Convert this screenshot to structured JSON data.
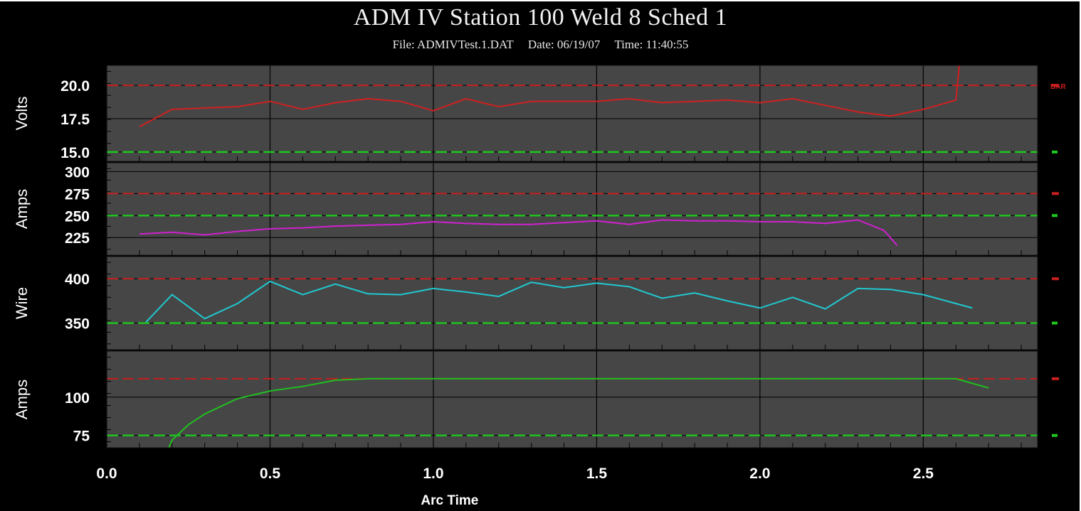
{
  "window": {
    "title": "ADM IV Station 100 Weld 8 Sched 1",
    "file_text": "File: ADMIVTest.1.DAT",
    "date_text": "Date: 06/19/07",
    "time_text": "Time: 11:40:55"
  },
  "colors": {
    "background": "#000000",
    "plot_bg": "#464646",
    "grid": "#000000",
    "upper_limit": "#c81e1e",
    "lower_limit": "#1ec81e",
    "volts_line": "#d02020",
    "amps_line": "#d020d0",
    "wire_line": "#20c8d0",
    "amps2_line": "#20c020"
  },
  "chart_data": {
    "type": "line",
    "xlabel": "Arc Time",
    "xlim": [
      0.0,
      2.85
    ],
    "xticks": [
      "0.0",
      "0.5",
      "1.0",
      "1.5",
      "2.0",
      "2.5"
    ],
    "panels": [
      {
        "ylabel": "Volts",
        "ylim": [
          14.3,
          21.5
        ],
        "yticks": [
          "20.0",
          "17.5",
          "15.0"
        ],
        "yticks_values": [
          20.0,
          17.5,
          15.0
        ],
        "upper_limit": 20.0,
        "lower_limit": 15.0,
        "upper_marker": "BAR",
        "lower_marker": "",
        "series": [
          {
            "x": [
              0.1,
              0.2,
              0.3,
              0.4,
              0.5,
              0.6,
              0.7,
              0.8,
              0.9,
              1.0,
              1.1,
              1.2,
              1.3,
              1.4,
              1.5,
              1.6,
              1.7,
              1.8,
              1.9,
              2.0,
              2.1,
              2.2,
              2.3,
              2.4,
              2.5,
              2.6,
              2.61
            ],
            "y": [
              16.9,
              18.2,
              18.3,
              18.4,
              18.8,
              18.2,
              18.7,
              19.0,
              18.8,
              18.1,
              19.0,
              18.4,
              18.8,
              18.8,
              18.8,
              19.0,
              18.7,
              18.8,
              18.9,
              18.7,
              19.0,
              18.5,
              18.0,
              17.7,
              18.2,
              18.9,
              21.5
            ]
          }
        ]
      },
      {
        "ylabel": "Amps",
        "ylim": [
          205,
          310
        ],
        "yticks": [
          "300",
          "275",
          "250",
          "225"
        ],
        "yticks_values": [
          300,
          275,
          250,
          225
        ],
        "upper_limit": 275,
        "lower_limit": 250,
        "upper_marker": "",
        "lower_marker": "",
        "series": [
          {
            "x": [
              0.1,
              0.2,
              0.3,
              0.4,
              0.5,
              0.6,
              0.7,
              0.8,
              0.9,
              1.0,
              1.1,
              1.2,
              1.3,
              1.4,
              1.5,
              1.6,
              1.7,
              1.8,
              1.9,
              2.0,
              2.1,
              2.2,
              2.3,
              2.38,
              2.42
            ],
            "y": [
              229,
              231,
              228,
              232,
              235,
              236,
              238,
              239,
              240,
              243,
              241,
              240,
              240,
              242,
              244,
              240,
              245,
              244,
              244,
              243,
              243,
              241,
              245,
              233,
              216
            ]
          }
        ]
      },
      {
        "ylabel": "Wire",
        "ylim": [
          320,
          425
        ],
        "yticks": [
          "400",
          "350"
        ],
        "yticks_values": [
          400,
          350
        ],
        "upper_limit": 400,
        "lower_limit": 350,
        "upper_marker": "",
        "lower_marker": "",
        "series": [
          {
            "x": [
              0.12,
              0.2,
              0.3,
              0.4,
              0.5,
              0.6,
              0.7,
              0.8,
              0.9,
              1.0,
              1.1,
              1.2,
              1.3,
              1.4,
              1.5,
              1.6,
              1.7,
              1.8,
              1.9,
              2.0,
              2.1,
              2.2,
              2.3,
              2.4,
              2.5,
              2.6,
              2.65
            ],
            "y": [
              351,
              382,
              355,
              372,
              397,
              382,
              394,
              383,
              382,
              389,
              385,
              380,
              396,
              390,
              395,
              391,
              378,
              384,
              375,
              367,
              379,
              366,
              389,
              388,
              382,
              372,
              367
            ]
          }
        ]
      },
      {
        "ylabel": "Amps",
        "ylim": [
          67,
          130
        ],
        "yticks": [
          "100",
          "75"
        ],
        "yticks_values": [
          100,
          75
        ],
        "upper_limit": 112,
        "lower_limit": 75,
        "upper_marker": "",
        "lower_marker": "",
        "series": [
          {
            "x": [
              0.19,
              0.2,
              0.25,
              0.3,
              0.35,
              0.4,
              0.5,
              0.6,
              0.7,
              0.8,
              1.0,
              1.2,
              1.4,
              1.5,
              1.6,
              1.8,
              2.0,
              2.2,
              2.4,
              2.6,
              2.7
            ],
            "y": [
              67,
              72,
              82,
              89,
              94,
              99,
              104,
              107,
              111,
              112,
              112,
              112,
              112,
              112,
              112,
              112,
              112,
              112,
              112,
              112,
              106
            ]
          }
        ]
      }
    ]
  }
}
